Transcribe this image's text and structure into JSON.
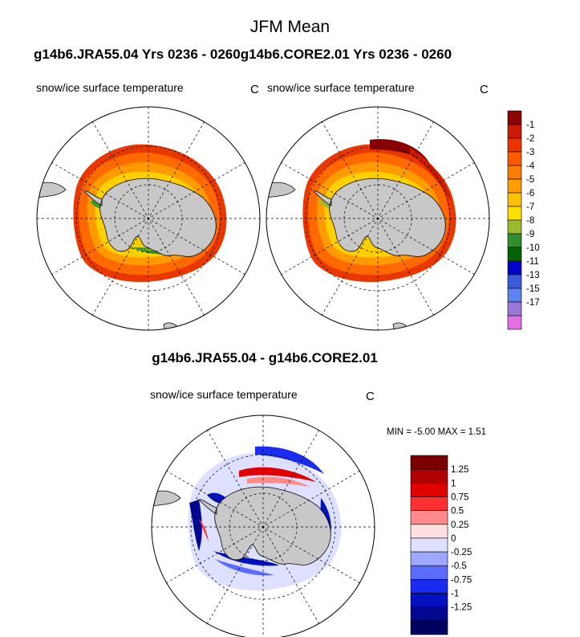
{
  "title": "JFM Mean",
  "subtitle": "g14b6.JRA55.04  Yrs 0236 - 0260g14b6.CORE2.01  Yrs 0236 - 0260",
  "panels": [
    {
      "label": "snow/ice surface temperature",
      "unit": "C"
    },
    {
      "label": "snow/ice surface temperature",
      "unit": "C"
    }
  ],
  "diff": {
    "title": "g14b6.JRA55.04 - g14b6.CORE2.01",
    "label": "snow/ice surface temperature",
    "unit": "C",
    "minmax": "MIN =  -5.00 MAX =   1.51"
  },
  "colorbar_top": {
    "labels": [
      "-1",
      "-2",
      "-3",
      "-4",
      "-5",
      "-6",
      "-7",
      "-8",
      "-9",
      "-10",
      "-11",
      "-13",
      "-15",
      "-17"
    ],
    "colors": [
      "#8b0000",
      "#cc1a00",
      "#ee3300",
      "#ff5a00",
      "#ff7c00",
      "#ff9e00",
      "#ffc000",
      "#ffde00",
      "#9dbb30",
      "#2f8f2f",
      "#006400",
      "#0000c8",
      "#3a5cdc",
      "#5c84ee",
      "#9a78d8",
      "#e470e4"
    ]
  },
  "colorbar_diff": {
    "labels": [
      "1.25",
      "1",
      "0.75",
      "0.5",
      "0.25",
      "0",
      "-0.25",
      "-0.5",
      "-0.75",
      "-1",
      "-1.25"
    ],
    "colors": [
      "#7a0000",
      "#b00000",
      "#e00000",
      "#ff3030",
      "#ff8a8a",
      "#ffe0e0",
      "#dde0ff",
      "#9ea8ff",
      "#5a6cff",
      "#1a2cf0",
      "#0012c0",
      "#000890",
      "#000060"
    ]
  }
}
